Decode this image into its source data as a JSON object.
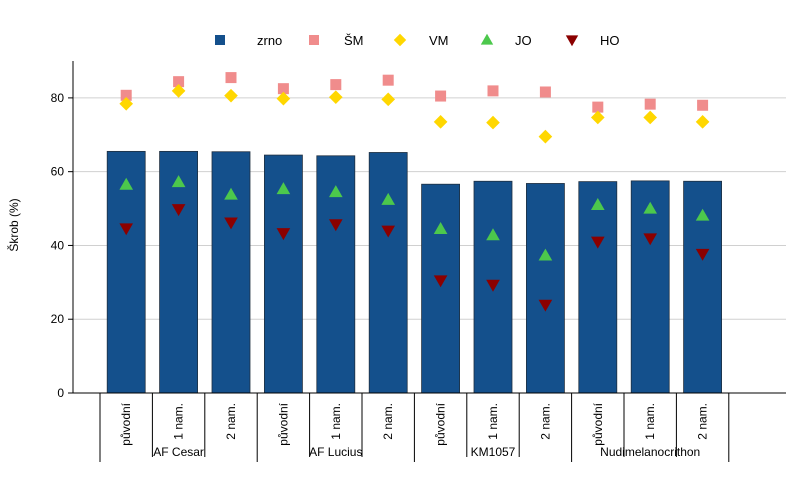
{
  "chart_data": {
    "type": "bar",
    "ylabel": "Škrob (%)",
    "ylim": [
      0,
      90
    ],
    "yticks": [
      0,
      20,
      40,
      60,
      80
    ],
    "grid": true,
    "legend_position": "top",
    "groups": [
      {
        "name": "AF Cesar",
        "treatments": [
          "původní",
          "1 nam.",
          "2 nam."
        ]
      },
      {
        "name": "AF Lucius",
        "treatments": [
          "původní",
          "1 nam.",
          "2 nam."
        ]
      },
      {
        "name": "KM1057",
        "treatments": [
          "původní",
          "1 nam.",
          "2 nam."
        ]
      },
      {
        "name": "Nudimelanocrithon",
        "treatments": [
          "původní",
          "1 nam.",
          "2 nam."
        ]
      }
    ],
    "series": [
      {
        "name": "zrno",
        "kind": "bar",
        "marker": "square",
        "color": "#14508C",
        "values": [
          65.5,
          65.5,
          65.4,
          64.5,
          64.3,
          65.2,
          56.6,
          57.4,
          56.8,
          57.3,
          57.5,
          57.4
        ]
      },
      {
        "name": "ŠM",
        "kind": "marker",
        "marker": "square",
        "color": "#F08C8C",
        "values": [
          80.7,
          84.4,
          85.5,
          82.5,
          83.6,
          84.8,
          80.5,
          81.9,
          81.6,
          77.5,
          78.3,
          78.0
        ]
      },
      {
        "name": "VM",
        "kind": "marker",
        "marker": "diamond",
        "color": "#FFD700",
        "values": [
          78.4,
          81.9,
          80.6,
          79.8,
          80.2,
          79.6,
          73.5,
          73.3,
          69.5,
          74.7,
          74.7,
          73.5
        ]
      },
      {
        "name": "JO",
        "kind": "marker",
        "marker": "triangle-up",
        "color": "#4CC84C",
        "values": [
          56.5,
          57.2,
          53.8,
          55.3,
          54.5,
          52.4,
          44.5,
          42.8,
          37.3,
          51.0,
          50.0,
          48.1
        ]
      },
      {
        "name": "HO",
        "kind": "marker",
        "marker": "triangle-down",
        "color": "#8B0000",
        "values": [
          44.6,
          49.8,
          46.2,
          43.3,
          45.7,
          44.0,
          30.5,
          29.3,
          23.9,
          41.0,
          41.9,
          37.7
        ]
      }
    ]
  }
}
